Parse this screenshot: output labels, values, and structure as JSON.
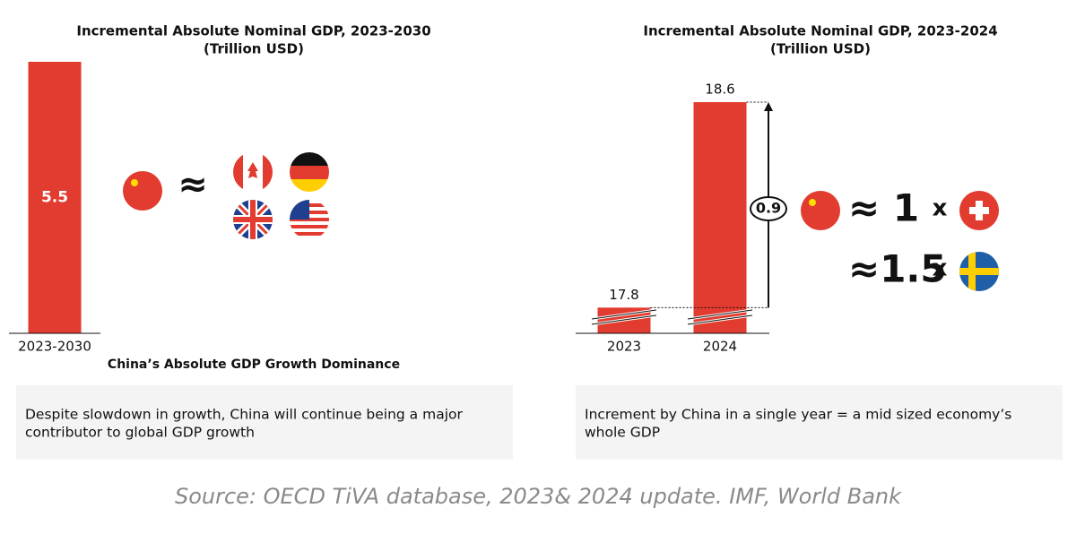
{
  "chart_data": [
    {
      "type": "bar",
      "title": "Incremental Absolute Nominal GDP, 2023-2030",
      "subtitle": "(Trillion USD)",
      "categories": [
        "2023-2030"
      ],
      "values": [
        5.5
      ],
      "color": "#e23b30",
      "ylim": [
        0,
        5.5
      ],
      "annotations": [
        "≈"
      ],
      "caption": "China’s Absolute GDP Growth Dominance",
      "note": [
        "Despite slowdown in growth, China will continue being a major",
        "contributor to global GDP growth"
      ]
    },
    {
      "type": "bar",
      "title": "Incremental Absolute Nominal GDP, 2023-2024",
      "subtitle": "(Trillion USD)",
      "categories": [
        "2023",
        "2024"
      ],
      "values": [
        17.8,
        18.6
      ],
      "color": "#e23b30",
      "ylim": [
        17.7,
        18.6
      ],
      "annotations": [
        "0.9",
        "≈ 1",
        "x",
        "≈1.5",
        "x"
      ],
      "note": [
        "Increment by China in a single year = a mid sized economy’s",
        "whole GDP"
      ]
    }
  ],
  "source": "Source: OECD TiVA database, 2023& 2024 update. IMF, World Bank"
}
